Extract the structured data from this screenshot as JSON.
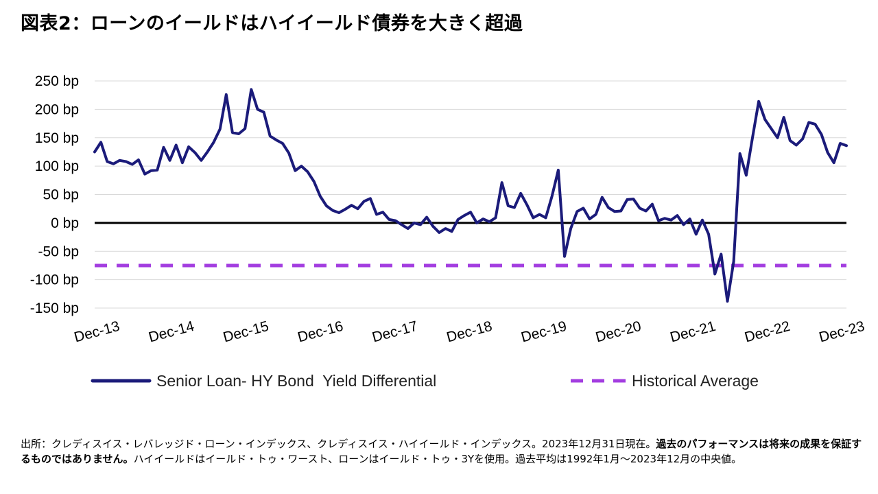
{
  "title": "図表2：ローンのイールドはハイイールド債券を大きく超過",
  "footnote": {
    "part1": "出所：クレディスイス・レバレッジド・ローン・インデックス、クレディスイス・ハイイールド・インデックス。2023年12月31日現在。",
    "bold": "過去のパフォーマンスは将来の成果を保証するものではありません。",
    "part2": "ハイイールドはイールド・トゥ・ワースト、ローンはイールド・トゥ・3Yを使用。過去平均は1992年1月～2023年12月の中央値。"
  },
  "chart_data": {
    "type": "line",
    "y_ticks": [
      "250 bp",
      "200 bp",
      "150 bp",
      "100 bp",
      "50 bp",
      "0 bp",
      "-50 bp",
      "-100 bp",
      "-150 bp"
    ],
    "y_tick_values": [
      250,
      200,
      150,
      100,
      50,
      0,
      -50,
      -100,
      -150
    ],
    "ylim": [
      -150,
      250
    ],
    "x_ticks": [
      "Dec-13",
      "Dec-14",
      "Dec-15",
      "Dec-16",
      "Dec-17",
      "Dec-18",
      "Dec-19",
      "Dec-20",
      "Dec-21",
      "Dec-22",
      "Dec-23"
    ],
    "grid": "horizontal",
    "legend_position": "bottom",
    "series": [
      {
        "name": "Senior Loan- HY Bond  Yield Differential",
        "color": "#1b1b7a",
        "style": "solid",
        "values": [
          125,
          142,
          108,
          104,
          110,
          108,
          103,
          111,
          86,
          92,
          93,
          133,
          110,
          137,
          106,
          134,
          124,
          110,
          125,
          142,
          165,
          226,
          159,
          157,
          166,
          235,
          200,
          195,
          153,
          146,
          140,
          123,
          92,
          100,
          90,
          73,
          47,
          30,
          22,
          18,
          24,
          31,
          25,
          38,
          43,
          15,
          19,
          6,
          4,
          -3,
          -10,
          0,
          -3,
          10,
          -6,
          -17,
          -10,
          -15,
          6,
          13,
          19,
          0,
          7,
          2,
          9,
          71,
          30,
          27,
          52,
          32,
          9,
          15,
          9,
          47,
          93,
          -59,
          -10,
          20,
          26,
          7,
          15,
          45,
          27,
          20,
          21,
          41,
          42,
          26,
          21,
          33,
          4,
          8,
          5,
          13,
          -3,
          7,
          -20,
          5,
          -20,
          -90,
          -55,
          -138,
          -68,
          122,
          84,
          150,
          214,
          182,
          166,
          150,
          186,
          145,
          137,
          148,
          177,
          174,
          156,
          124,
          106,
          140,
          136
        ]
      },
      {
        "name": "Historical Average",
        "color": "#a33de0",
        "style": "dashed",
        "values": [
          -75
        ]
      }
    ],
    "zero_line_color": "#000000"
  }
}
